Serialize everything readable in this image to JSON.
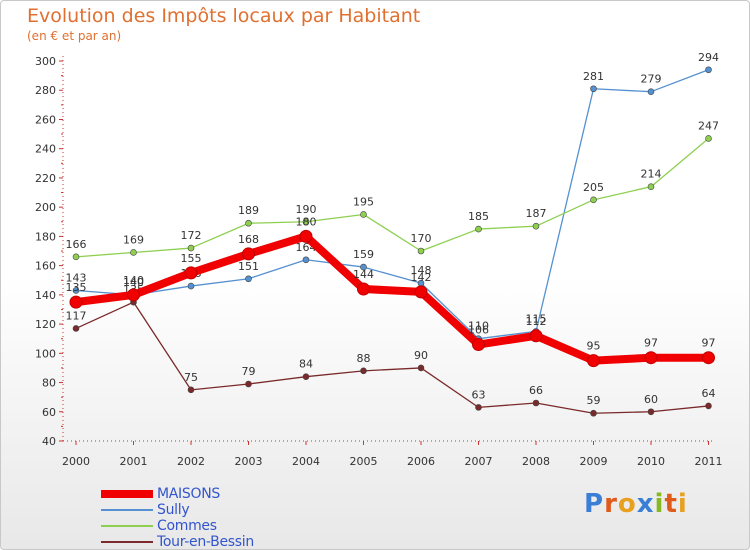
{
  "title": "Evolution des Impôts locaux par Habitant",
  "subtitle": "(en € et par an)",
  "logo": {
    "text": "Proxiti",
    "letters": [
      "P",
      "r",
      "o",
      "x",
      "i",
      "t",
      "i"
    ]
  },
  "chart_data": {
    "type": "line",
    "title": "Evolution des Impôts locaux par Habitant",
    "ylabel": "(en € et par an)",
    "xlabel": "",
    "categories": [
      "2000",
      "2001",
      "2002",
      "2003",
      "2004",
      "2005",
      "2006",
      "2007",
      "2008",
      "2009",
      "2010",
      "2011"
    ],
    "ylim": [
      40,
      300
    ],
    "yticks": [
      40,
      60,
      80,
      100,
      120,
      140,
      160,
      180,
      200,
      220,
      240,
      260,
      280,
      300
    ],
    "grid": false,
    "legend": "bottom-left",
    "series": [
      {
        "name": "Tour-en-Bessin",
        "color": "#7a2a2a",
        "values": [
          117,
          135,
          75,
          79,
          84,
          88,
          90,
          63,
          66,
          59,
          60,
          64
        ]
      },
      {
        "name": "Sully",
        "color": "#5590d0",
        "values": [
          143,
          140,
          146,
          151,
          164,
          159,
          148,
          110,
          115,
          281,
          279,
          294
        ]
      },
      {
        "name": "Commes",
        "color": "#8ecf50",
        "values": [
          166,
          169,
          172,
          189,
          190,
          195,
          170,
          185,
          187,
          205,
          214,
          247
        ]
      },
      {
        "name": "MAISONS",
        "color": "#f00000",
        "values": [
          135,
          140,
          155,
          168,
          180,
          144,
          142,
          106,
          112,
          95,
          97,
          97
        ]
      }
    ]
  },
  "legend_items": [
    {
      "name": "MAISONS",
      "color": "#f00000"
    },
    {
      "name": "Sully",
      "color": "#5590d0"
    },
    {
      "name": "Commes",
      "color": "#8ecf50"
    },
    {
      "name": "Tour-en-Bessin",
      "color": "#7a2a2a"
    }
  ]
}
